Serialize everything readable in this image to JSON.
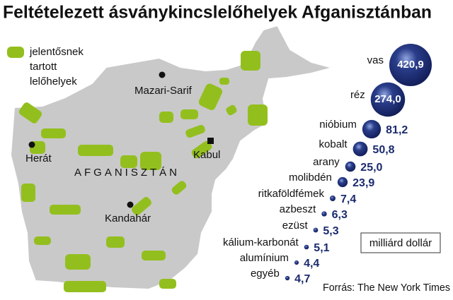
{
  "chart_data": {
    "type": "bubble",
    "title": "Feltételezett ásványkincslelőhelyek Afganisztánban",
    "categories": [
      "vas",
      "réz",
      "nióbium",
      "kobalt",
      "arany",
      "molibdén",
      "ritkaföldfémek",
      "azbeszt",
      "ezüst",
      "kálium-karbonát",
      "alumínium",
      "egyéb"
    ],
    "values": [
      420.9,
      274.0,
      81.2,
      50.8,
      25.0,
      23.9,
      7.4,
      6.3,
      5.3,
      5.1,
      4.4,
      4.7
    ],
    "value_labels": [
      "420,9",
      "274,0",
      "81,2",
      "50,8",
      "25,0",
      "23,9",
      "7,4",
      "6,3",
      "5,3",
      "5,1",
      "4,4",
      "4,7"
    ],
    "color": "#1b2b6e",
    "unit": "milliárd dollár",
    "source": "Forrás: The New York Times"
  },
  "map": {
    "legend": [
      "jelentősnek",
      "tartott",
      "lelőhelyek"
    ],
    "country": "AFGANISZTÁN",
    "cities": [
      "Mazari-Sarif",
      "Herát",
      "Kabul",
      "Kandahár"
    ]
  }
}
